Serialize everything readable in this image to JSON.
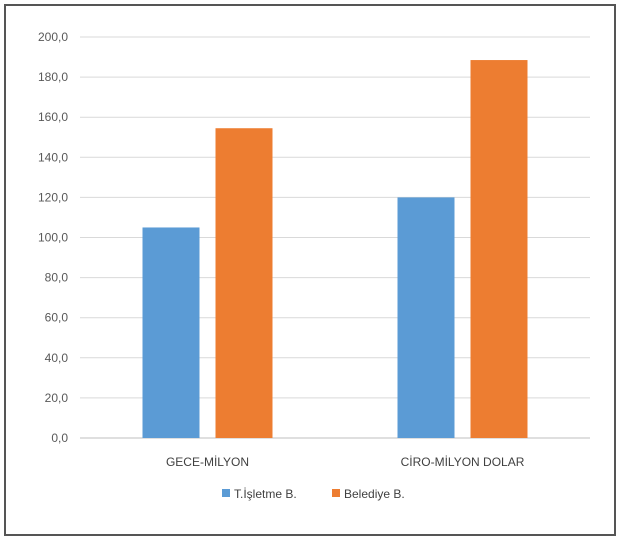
{
  "chart_data": {
    "type": "bar",
    "categories": [
      "GECE-MİLYON",
      "CİRO-MİLYON DOLAR"
    ],
    "series": [
      {
        "name": "T.İşletme B.",
        "color": "#5B9BD5",
        "values": [
          105.0,
          120.0
        ]
      },
      {
        "name": "Belediye B.",
        "color": "#ED7D31",
        "values": [
          154.5,
          188.5
        ]
      }
    ],
    "ylim": [
      0,
      200
    ],
    "y_ticks": [
      "0,0",
      "20,0",
      "40,0",
      "60,0",
      "80,0",
      "100,0",
      "120,0",
      "140,0",
      "160,0",
      "180,0",
      "200,0"
    ],
    "grid": true,
    "legend_position": "bottom"
  }
}
